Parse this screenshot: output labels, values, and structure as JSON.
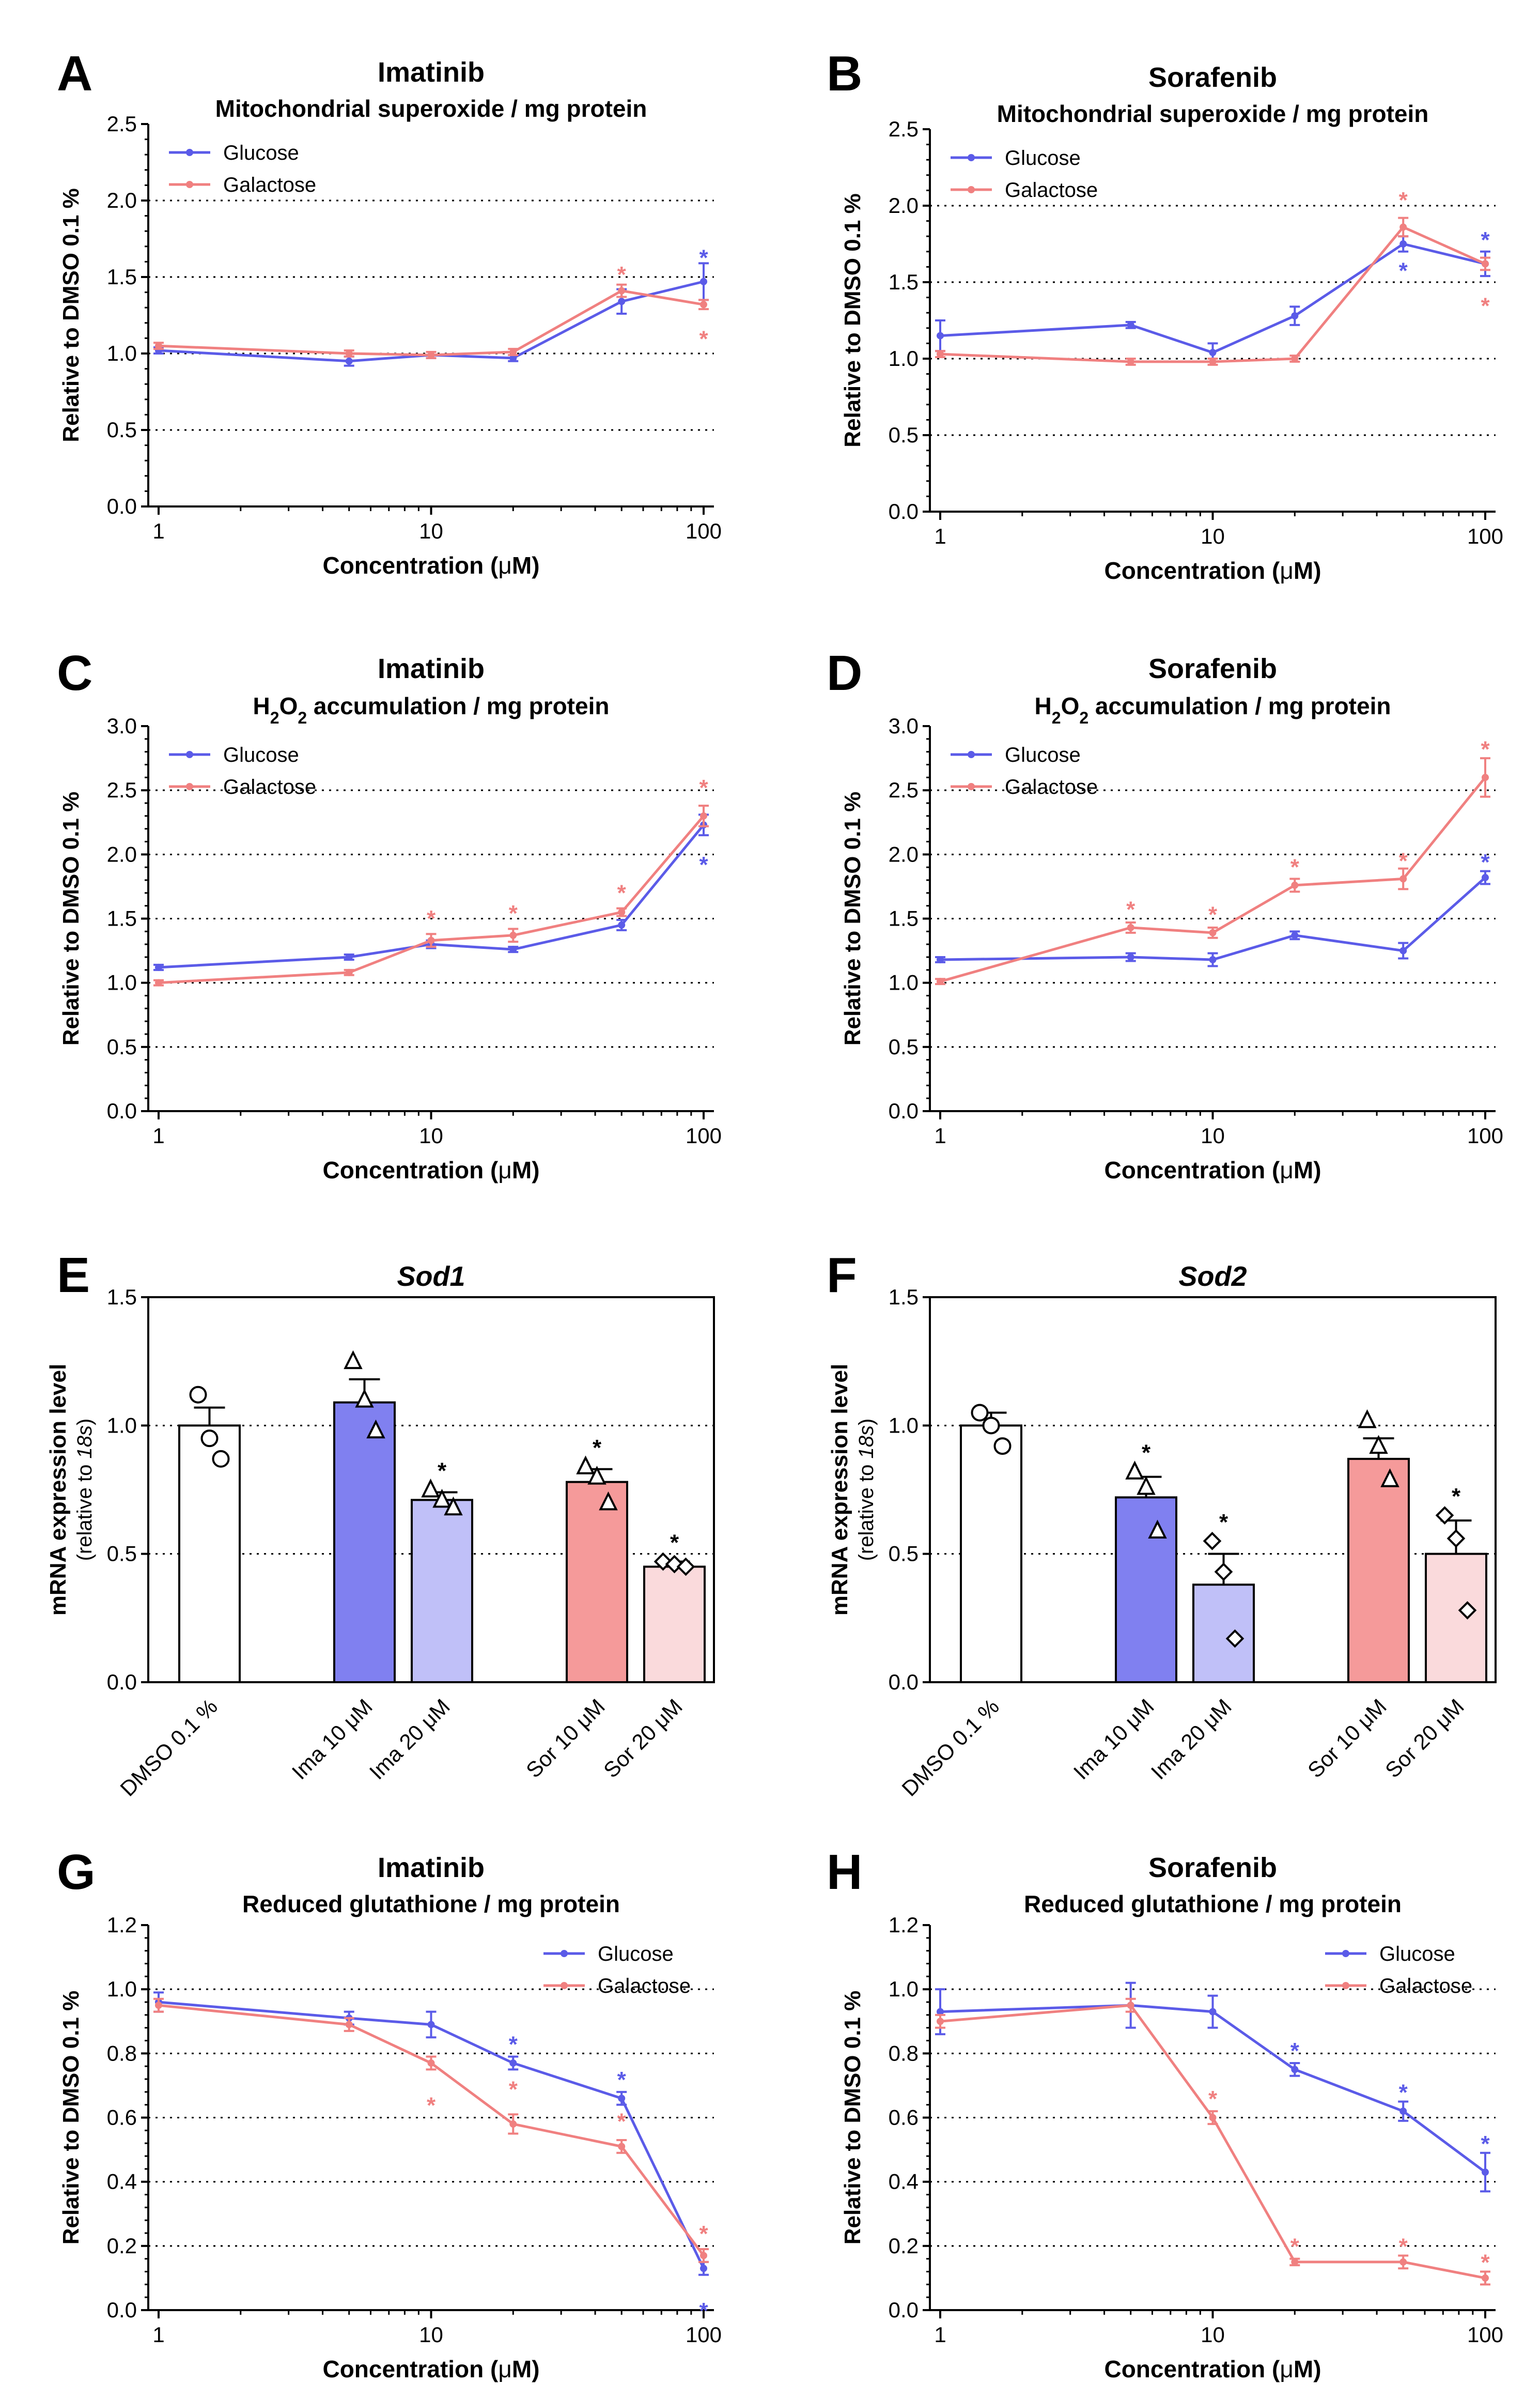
{
  "colors": {
    "glucose": "#5b5be8",
    "galactose": "#f08080",
    "axis": "#000000",
    "grid": "#000000"
  },
  "chart_data": [
    {
      "panel": "A",
      "type": "line",
      "title": "Imatinib",
      "subtitle_parts": [
        {
          "t": "Mitochondrial superoxide / mg protein"
        }
      ],
      "ylabel": "Relative to DMSO 0.1 %",
      "xlabel_pre": "Concentration (",
      "xlabel_mu": "μ",
      "xlabel_post": "M)",
      "xscale": "log",
      "xlim": [
        1,
        100
      ],
      "xticks": [
        "1",
        "10",
        "100"
      ],
      "ylim": [
        0,
        2.5
      ],
      "yticks": [
        "0.0",
        "0.5",
        "1.0",
        "1.5",
        "2.0",
        "2.5"
      ],
      "gridlines": [
        0.5,
        1.0,
        1.5,
        2.0
      ],
      "legend_pos": "top-left",
      "x": [
        1,
        5,
        10,
        20,
        50,
        100
      ],
      "series": [
        {
          "name": "Glucose",
          "color_key": "glucose",
          "values": [
            1.02,
            0.95,
            0.99,
            0.97,
            1.34,
            1.47
          ],
          "errors": [
            0.02,
            0.03,
            0.02,
            0.02,
            0.08,
            0.12
          ],
          "sig": [
            false,
            false,
            false,
            false,
            false,
            true
          ],
          "sig_offset": [
            0,
            0,
            0,
            0,
            0,
            0.18
          ]
        },
        {
          "name": "Galactose",
          "color_key": "galactose",
          "values": [
            1.05,
            1.0,
            0.99,
            1.01,
            1.41,
            1.32
          ],
          "errors": [
            0.02,
            0.02,
            0.02,
            0.02,
            0.04,
            0.03
          ],
          "sig": [
            false,
            false,
            false,
            false,
            true,
            true
          ],
          "sig_offset": [
            0,
            0,
            0,
            0,
            0.13,
            -0.2
          ]
        }
      ],
      "star": "*"
    },
    {
      "panel": "B",
      "type": "line",
      "title": "Sorafenib",
      "subtitle_parts": [
        {
          "t": "Mitochondrial superoxide / mg protein"
        }
      ],
      "ylabel": "Relative to DMSO 0.1 %",
      "xlabel_pre": "Concentration (",
      "xlabel_mu": "μ",
      "xlabel_post": "M)",
      "xscale": "log",
      "xlim": [
        1,
        100
      ],
      "xticks": [
        "1",
        "10",
        "100"
      ],
      "ylim": [
        0,
        2.5
      ],
      "yticks": [
        "0.0",
        "0.5",
        "1.0",
        "1.5",
        "2.0",
        "2.5"
      ],
      "gridlines": [
        0.5,
        1.0,
        1.5,
        2.0
      ],
      "legend_pos": "top-left",
      "x": [
        1,
        5,
        10,
        20,
        50,
        100
      ],
      "series": [
        {
          "name": "Glucose",
          "color_key": "glucose",
          "values": [
            1.15,
            1.22,
            1.04,
            1.28,
            1.75,
            1.62
          ],
          "errors": [
            0.1,
            0.02,
            0.06,
            0.06,
            0.05,
            0.08
          ],
          "sig": [
            false,
            false,
            false,
            false,
            true,
            true
          ],
          "sig_offset": [
            0,
            0,
            0,
            0,
            -0.15,
            0.18
          ]
        },
        {
          "name": "Galactose",
          "color_key": "galactose",
          "values": [
            1.03,
            0.98,
            0.98,
            1.0,
            1.86,
            1.62
          ],
          "errors": [
            0.02,
            0.02,
            0.02,
            0.02,
            0.06,
            0.04
          ],
          "sig": [
            false,
            false,
            false,
            false,
            true,
            true
          ],
          "sig_offset": [
            0,
            0,
            0,
            0,
            0.2,
            -0.25
          ]
        }
      ],
      "star": "*"
    },
    {
      "panel": "C",
      "type": "line",
      "title": "Imatinib",
      "subtitle_parts": [
        {
          "t": "H"
        },
        {
          "t": "2",
          "sub": true
        },
        {
          "t": "O"
        },
        {
          "t": "2",
          "sub": true
        },
        {
          "t": " accumulation / mg protein"
        }
      ],
      "ylabel": "Relative to DMSO 0.1 %",
      "xlabel_pre": "Concentration (",
      "xlabel_mu": "μ",
      "xlabel_post": "M)",
      "xscale": "log",
      "xlim": [
        1,
        100
      ],
      "xticks": [
        "1",
        "10",
        "100"
      ],
      "ylim": [
        0,
        3.0
      ],
      "yticks": [
        "0.0",
        "0.5",
        "1.0",
        "1.5",
        "2.0",
        "2.5",
        "3.0"
      ],
      "gridlines": [
        0.5,
        1.0,
        1.5,
        2.0,
        2.5
      ],
      "legend_pos": "top-left",
      "x": [
        1,
        5,
        10,
        20,
        50,
        100
      ],
      "series": [
        {
          "name": "Glucose",
          "color_key": "glucose",
          "values": [
            1.12,
            1.2,
            1.3,
            1.26,
            1.45,
            2.23
          ],
          "errors": [
            0.02,
            0.02,
            0.03,
            0.02,
            0.04,
            0.08
          ],
          "sig": [
            false,
            false,
            false,
            false,
            false,
            true
          ],
          "sig_offset": [
            0,
            0,
            0,
            0,
            0,
            -0.28
          ]
        },
        {
          "name": "Galactose",
          "color_key": "galactose",
          "values": [
            1.0,
            1.08,
            1.33,
            1.37,
            1.55,
            2.3
          ],
          "errors": [
            0.02,
            0.02,
            0.05,
            0.05,
            0.03,
            0.08
          ],
          "sig": [
            false,
            false,
            true,
            true,
            true,
            true
          ],
          "sig_offset": [
            0,
            0,
            0.2,
            0.2,
            0.18,
            0.25
          ]
        }
      ],
      "star": "*"
    },
    {
      "panel": "D",
      "type": "line",
      "title": "Sorafenib",
      "subtitle_parts": [
        {
          "t": "H"
        },
        {
          "t": "2",
          "sub": true
        },
        {
          "t": "O"
        },
        {
          "t": "2",
          "sub": true
        },
        {
          "t": " accumulation / mg protein"
        }
      ],
      "ylabel": "Relative to DMSO 0.1 %",
      "xlabel_pre": "Concentration (",
      "xlabel_mu": "μ",
      "xlabel_post": "M)",
      "xscale": "log",
      "xlim": [
        1,
        100
      ],
      "xticks": [
        "1",
        "10",
        "100"
      ],
      "ylim": [
        0,
        3.0
      ],
      "yticks": [
        "0.0",
        "0.5",
        "1.0",
        "1.5",
        "2.0",
        "2.5",
        "3.0"
      ],
      "gridlines": [
        0.5,
        1.0,
        1.5,
        2.0,
        2.5
      ],
      "legend_pos": "top-left",
      "x": [
        1,
        5,
        10,
        20,
        50,
        100
      ],
      "series": [
        {
          "name": "Glucose",
          "color_key": "glucose",
          "values": [
            1.18,
            1.2,
            1.18,
            1.37,
            1.25,
            1.82
          ],
          "errors": [
            0.02,
            0.03,
            0.05,
            0.03,
            0.06,
            0.05
          ],
          "sig": [
            false,
            false,
            false,
            false,
            false,
            true
          ],
          "sig_offset": [
            0,
            0,
            0,
            0,
            0,
            0.15
          ]
        },
        {
          "name": "Galactose",
          "color_key": "galactose",
          "values": [
            1.01,
            1.43,
            1.39,
            1.76,
            1.81,
            2.6
          ],
          "errors": [
            0.02,
            0.04,
            0.04,
            0.05,
            0.08,
            0.15
          ],
          "sig": [
            false,
            true,
            true,
            true,
            true,
            true
          ],
          "sig_offset": [
            0,
            0.17,
            0.17,
            0.17,
            0.17,
            0.25
          ]
        }
      ],
      "star": "*"
    },
    {
      "panel": "E",
      "type": "bar",
      "title": "Sod1",
      "ylabel": "mRNA expression level",
      "ylabel_sub_pre": "(relative to ",
      "ylabel_sub_italic": "18s",
      "ylabel_sub_post": ")",
      "ylim": [
        0,
        1.5
      ],
      "yticks": [
        "0.0",
        "0.5",
        "1.0",
        "1.5"
      ],
      "gridlines": [
        0.5,
        1.0
      ],
      "categories": [
        "DMSO 0.1 %",
        "Ima 10 μM",
        "Ima 20 μM",
        "Sor 10 μM",
        "Sor 20 μM"
      ],
      "slots": [
        0,
        2,
        3,
        5,
        6
      ],
      "values": [
        1.0,
        1.09,
        0.71,
        0.78,
        0.45
      ],
      "errors": [
        0.07,
        0.09,
        0.03,
        0.05,
        0.02
      ],
      "fills": [
        "#ffffff",
        "#8080f0",
        "#c0c0f8",
        "#f59a9a",
        "#fadadc"
      ],
      "markers": [
        "circle",
        "triangle",
        "triangle",
        "triangle",
        "diamond"
      ],
      "points": [
        [
          1.12,
          0.95,
          0.87
        ],
        [
          1.25,
          1.1,
          0.98
        ],
        [
          0.75,
          0.71,
          0.68
        ],
        [
          0.84,
          0.8,
          0.7
        ],
        [
          0.47,
          0.46,
          0.45
        ]
      ],
      "sig": [
        false,
        false,
        true,
        true,
        true
      ],
      "star": "*"
    },
    {
      "panel": "F",
      "type": "bar",
      "title": "Sod2",
      "ylabel": "mRNA expression level",
      "ylabel_sub_pre": "(relative to ",
      "ylabel_sub_italic": "18s",
      "ylabel_sub_post": ")",
      "ylim": [
        0,
        1.5
      ],
      "yticks": [
        "0.0",
        "0.5",
        "1.0",
        "1.5"
      ],
      "gridlines": [
        0.5,
        1.0
      ],
      "categories": [
        "DMSO 0.1 %",
        "Ima 10 μM",
        "Ima 20 μM",
        "Sor 10 μM",
        "Sor 20 μM"
      ],
      "slots": [
        0,
        2,
        3,
        5,
        6
      ],
      "values": [
        1.0,
        0.72,
        0.38,
        0.87,
        0.5
      ],
      "errors": [
        0.05,
        0.08,
        0.12,
        0.08,
        0.13
      ],
      "fills": [
        "#ffffff",
        "#8080f0",
        "#c0c0f8",
        "#f59a9a",
        "#fadadc"
      ],
      "markers": [
        "circle",
        "triangle",
        "diamond",
        "triangle",
        "diamond"
      ],
      "points": [
        [
          1.05,
          1.0,
          0.92
        ],
        [
          0.82,
          0.76,
          0.59
        ],
        [
          0.55,
          0.43,
          0.17
        ],
        [
          1.02,
          0.92,
          0.79
        ],
        [
          0.65,
          0.56,
          0.28
        ]
      ],
      "sig": [
        false,
        true,
        true,
        false,
        true
      ],
      "star": "*"
    },
    {
      "panel": "G",
      "type": "line",
      "title": "Imatinib",
      "subtitle_parts": [
        {
          "t": "Reduced glutathione / mg protein"
        }
      ],
      "ylabel": "Relative to DMSO 0.1 %",
      "xlabel_pre": "Concentration (",
      "xlabel_mu": "μ",
      "xlabel_post": "M)",
      "xscale": "log",
      "xlim": [
        1,
        100
      ],
      "xticks": [
        "1",
        "10",
        "100"
      ],
      "ylim": [
        0,
        1.2
      ],
      "yticks": [
        "0.0",
        "0.2",
        "0.4",
        "0.6",
        "0.8",
        "1.0",
        "1.2"
      ],
      "gridlines": [
        0.2,
        0.4,
        0.6,
        0.8,
        1.0
      ],
      "legend_pos": "top-right",
      "x": [
        1,
        5,
        10,
        20,
        50,
        100
      ],
      "series": [
        {
          "name": "Glucose",
          "color_key": "glucose",
          "values": [
            0.96,
            0.91,
            0.89,
            0.77,
            0.66,
            0.13
          ],
          "errors": [
            0.03,
            0.02,
            0.04,
            0.02,
            0.02,
            0.02
          ],
          "sig": [
            false,
            false,
            false,
            true,
            true,
            true
          ],
          "sig_offset": [
            0,
            0,
            0,
            0.07,
            0.07,
            -0.12
          ]
        },
        {
          "name": "Galactose",
          "color_key": "galactose",
          "values": [
            0.95,
            0.89,
            0.77,
            0.58,
            0.51,
            0.17
          ],
          "errors": [
            0.02,
            0.02,
            0.02,
            0.03,
            0.02,
            0.02
          ],
          "sig": [
            false,
            false,
            true,
            true,
            true,
            true
          ],
          "sig_offset": [
            0,
            0,
            -0.12,
            0.12,
            0.09,
            0.08
          ]
        }
      ],
      "star": "*"
    },
    {
      "panel": "H",
      "type": "line",
      "title": "Sorafenib",
      "subtitle_parts": [
        {
          "t": "Reduced glutathione / mg protein"
        }
      ],
      "ylabel": "Relative to DMSO 0.1 %",
      "xlabel_pre": "Concentration (",
      "xlabel_mu": "μ",
      "xlabel_post": "M)",
      "xscale": "log",
      "xlim": [
        1,
        100
      ],
      "xticks": [
        "1",
        "10",
        "100"
      ],
      "ylim": [
        0,
        1.2
      ],
      "yticks": [
        "0.0",
        "0.2",
        "0.4",
        "0.6",
        "0.8",
        "1.0",
        "1.2"
      ],
      "gridlines": [
        0.2,
        0.4,
        0.6,
        0.8,
        1.0
      ],
      "legend_pos": "top-right",
      "x": [
        1,
        5,
        10,
        20,
        50,
        100
      ],
      "series": [
        {
          "name": "Glucose",
          "color_key": "glucose",
          "values": [
            0.93,
            0.95,
            0.93,
            0.75,
            0.62,
            0.43
          ],
          "errors": [
            0.07,
            0.07,
            0.05,
            0.02,
            0.03,
            0.06
          ],
          "sig": [
            false,
            false,
            false,
            true,
            true,
            true
          ],
          "sig_offset": [
            0,
            0,
            0,
            0.07,
            0.07,
            0.1
          ]
        },
        {
          "name": "Galactose",
          "color_key": "galactose",
          "values": [
            0.9,
            0.95,
            0.6,
            0.15,
            0.15,
            0.1
          ],
          "errors": [
            0.02,
            0.02,
            0.02,
            0.01,
            0.02,
            0.02
          ],
          "sig": [
            false,
            false,
            true,
            true,
            true,
            true
          ],
          "sig_offset": [
            0,
            0,
            0.07,
            0.06,
            0.06,
            0.06
          ]
        }
      ],
      "star": "*"
    }
  ]
}
